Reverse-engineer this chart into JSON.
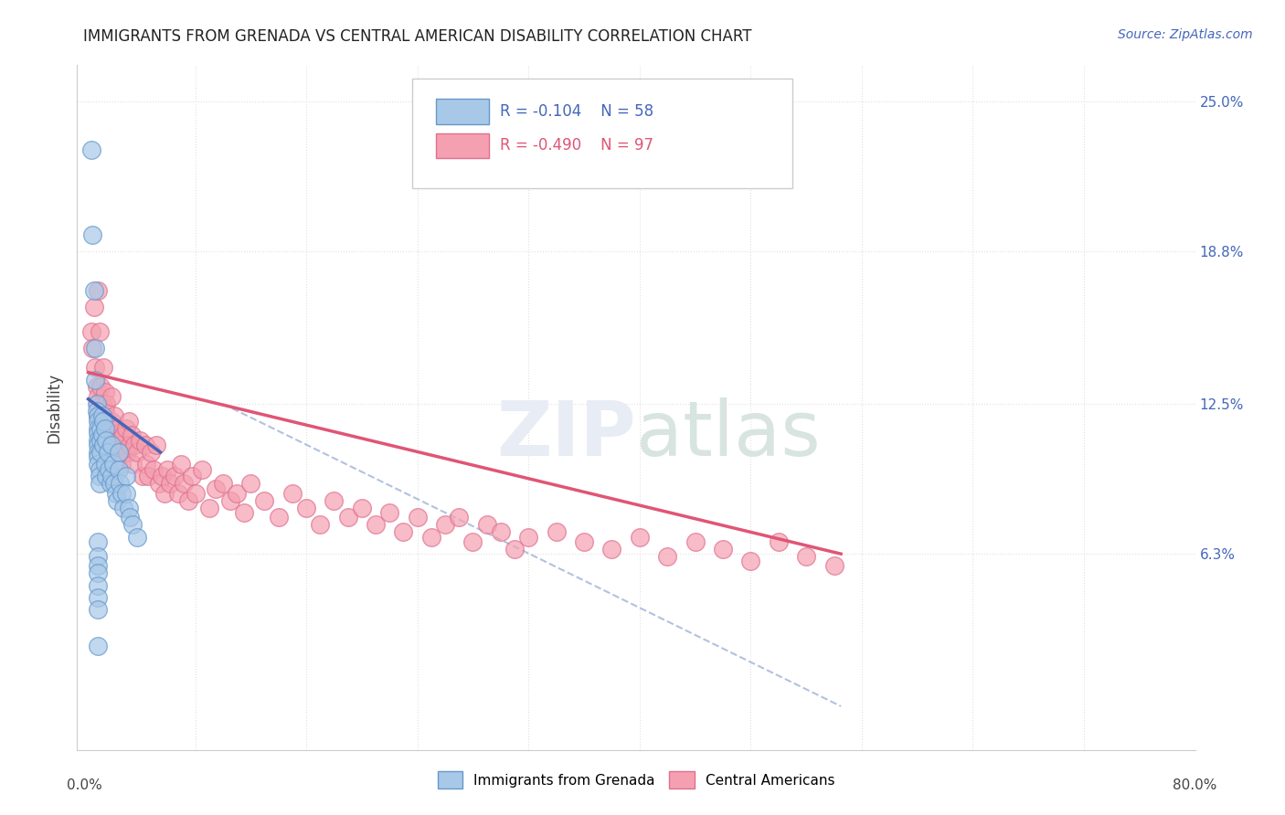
{
  "title": "IMMIGRANTS FROM GRENADA VS CENTRAL AMERICAN DISABILITY CORRELATION CHART",
  "source": "Source: ZipAtlas.com",
  "ylabel": "Disability",
  "yticks": [
    0.0,
    0.063,
    0.125,
    0.188,
    0.25
  ],
  "ytick_labels": [
    "",
    "6.3%",
    "12.5%",
    "18.8%",
    "25.0%"
  ],
  "blue_color": "#A8C8E8",
  "pink_color": "#F4A0B0",
  "blue_edge_color": "#6699CC",
  "pink_edge_color": "#E07090",
  "blue_line_color": "#4466BB",
  "pink_line_color": "#E05575",
  "diag_line_color": "#AABBDD",
  "grid_color": "#E0E0E0",
  "background_color": "#ffffff",
  "legend_r_blue_color": "#4466BB",
  "legend_r_pink_color": "#E05575",
  "legend_n_color": "#4466BB",
  "blue_scatter_x": [
    0.005,
    0.006,
    0.007,
    0.008,
    0.008,
    0.009,
    0.009,
    0.01,
    0.01,
    0.01,
    0.01,
    0.01,
    0.01,
    0.01,
    0.01,
    0.01,
    0.011,
    0.011,
    0.011,
    0.012,
    0.012,
    0.012,
    0.013,
    0.013,
    0.014,
    0.014,
    0.015,
    0.015,
    0.016,
    0.016,
    0.017,
    0.018,
    0.019,
    0.02,
    0.02,
    0.021,
    0.022,
    0.023,
    0.024,
    0.025,
    0.025,
    0.026,
    0.027,
    0.028,
    0.03,
    0.03,
    0.032,
    0.033,
    0.035,
    0.038,
    0.01,
    0.01,
    0.01,
    0.01,
    0.01,
    0.01,
    0.01,
    0.01
  ],
  "blue_scatter_y": [
    0.23,
    0.195,
    0.172,
    0.148,
    0.135,
    0.125,
    0.122,
    0.12,
    0.118,
    0.115,
    0.113,
    0.11,
    0.108,
    0.105,
    0.103,
    0.1,
    0.098,
    0.095,
    0.092,
    0.115,
    0.11,
    0.105,
    0.12,
    0.112,
    0.118,
    0.108,
    0.115,
    0.1,
    0.11,
    0.095,
    0.105,
    0.098,
    0.092,
    0.108,
    0.095,
    0.1,
    0.092,
    0.088,
    0.085,
    0.105,
    0.098,
    0.092,
    0.088,
    0.082,
    0.095,
    0.088,
    0.082,
    0.078,
    0.075,
    0.07,
    0.068,
    0.062,
    0.058,
    0.055,
    0.05,
    0.045,
    0.04,
    0.025
  ],
  "pink_scatter_x": [
    0.005,
    0.006,
    0.007,
    0.008,
    0.009,
    0.01,
    0.01,
    0.01,
    0.01,
    0.011,
    0.012,
    0.013,
    0.014,
    0.015,
    0.015,
    0.016,
    0.017,
    0.018,
    0.019,
    0.02,
    0.02,
    0.021,
    0.022,
    0.023,
    0.024,
    0.025,
    0.025,
    0.026,
    0.027,
    0.028,
    0.03,
    0.031,
    0.032,
    0.033,
    0.034,
    0.035,
    0.036,
    0.038,
    0.04,
    0.042,
    0.044,
    0.045,
    0.046,
    0.048,
    0.05,
    0.052,
    0.054,
    0.056,
    0.058,
    0.06,
    0.062,
    0.065,
    0.068,
    0.07,
    0.072,
    0.075,
    0.078,
    0.08,
    0.085,
    0.09,
    0.095,
    0.1,
    0.105,
    0.11,
    0.115,
    0.12,
    0.13,
    0.14,
    0.15,
    0.16,
    0.17,
    0.18,
    0.19,
    0.2,
    0.21,
    0.22,
    0.23,
    0.24,
    0.25,
    0.26,
    0.27,
    0.28,
    0.29,
    0.3,
    0.31,
    0.32,
    0.34,
    0.36,
    0.38,
    0.4,
    0.42,
    0.44,
    0.46,
    0.48,
    0.5,
    0.52,
    0.54
  ],
  "pink_scatter_y": [
    0.155,
    0.148,
    0.165,
    0.14,
    0.132,
    0.172,
    0.128,
    0.125,
    0.12,
    0.155,
    0.132,
    0.125,
    0.14,
    0.13,
    0.122,
    0.125,
    0.118,
    0.112,
    0.108,
    0.128,
    0.118,
    0.112,
    0.12,
    0.108,
    0.115,
    0.11,
    0.105,
    0.108,
    0.1,
    0.112,
    0.115,
    0.105,
    0.118,
    0.108,
    0.112,
    0.1,
    0.108,
    0.105,
    0.11,
    0.095,
    0.108,
    0.1,
    0.095,
    0.105,
    0.098,
    0.108,
    0.092,
    0.095,
    0.088,
    0.098,
    0.092,
    0.095,
    0.088,
    0.1,
    0.092,
    0.085,
    0.095,
    0.088,
    0.098,
    0.082,
    0.09,
    0.092,
    0.085,
    0.088,
    0.08,
    0.092,
    0.085,
    0.078,
    0.088,
    0.082,
    0.075,
    0.085,
    0.078,
    0.082,
    0.075,
    0.08,
    0.072,
    0.078,
    0.07,
    0.075,
    0.078,
    0.068,
    0.075,
    0.072,
    0.065,
    0.07,
    0.072,
    0.068,
    0.065,
    0.07,
    0.062,
    0.068,
    0.065,
    0.06,
    0.068,
    0.062,
    0.058
  ],
  "blue_line_x": [
    0.003,
    0.055
  ],
  "blue_line_y": [
    0.127,
    0.105
  ],
  "pink_line_x": [
    0.003,
    0.545
  ],
  "pink_line_y": [
    0.138,
    0.063
  ],
  "diag_line_x": [
    0.1,
    0.545
  ],
  "diag_line_y": [
    0.125,
    0.0
  ],
  "xlim": [
    -0.005,
    0.565
  ],
  "ylim": [
    -0.018,
    0.265
  ],
  "xaxis_left_label": "0.0%",
  "xaxis_right_label": "80.0%"
}
